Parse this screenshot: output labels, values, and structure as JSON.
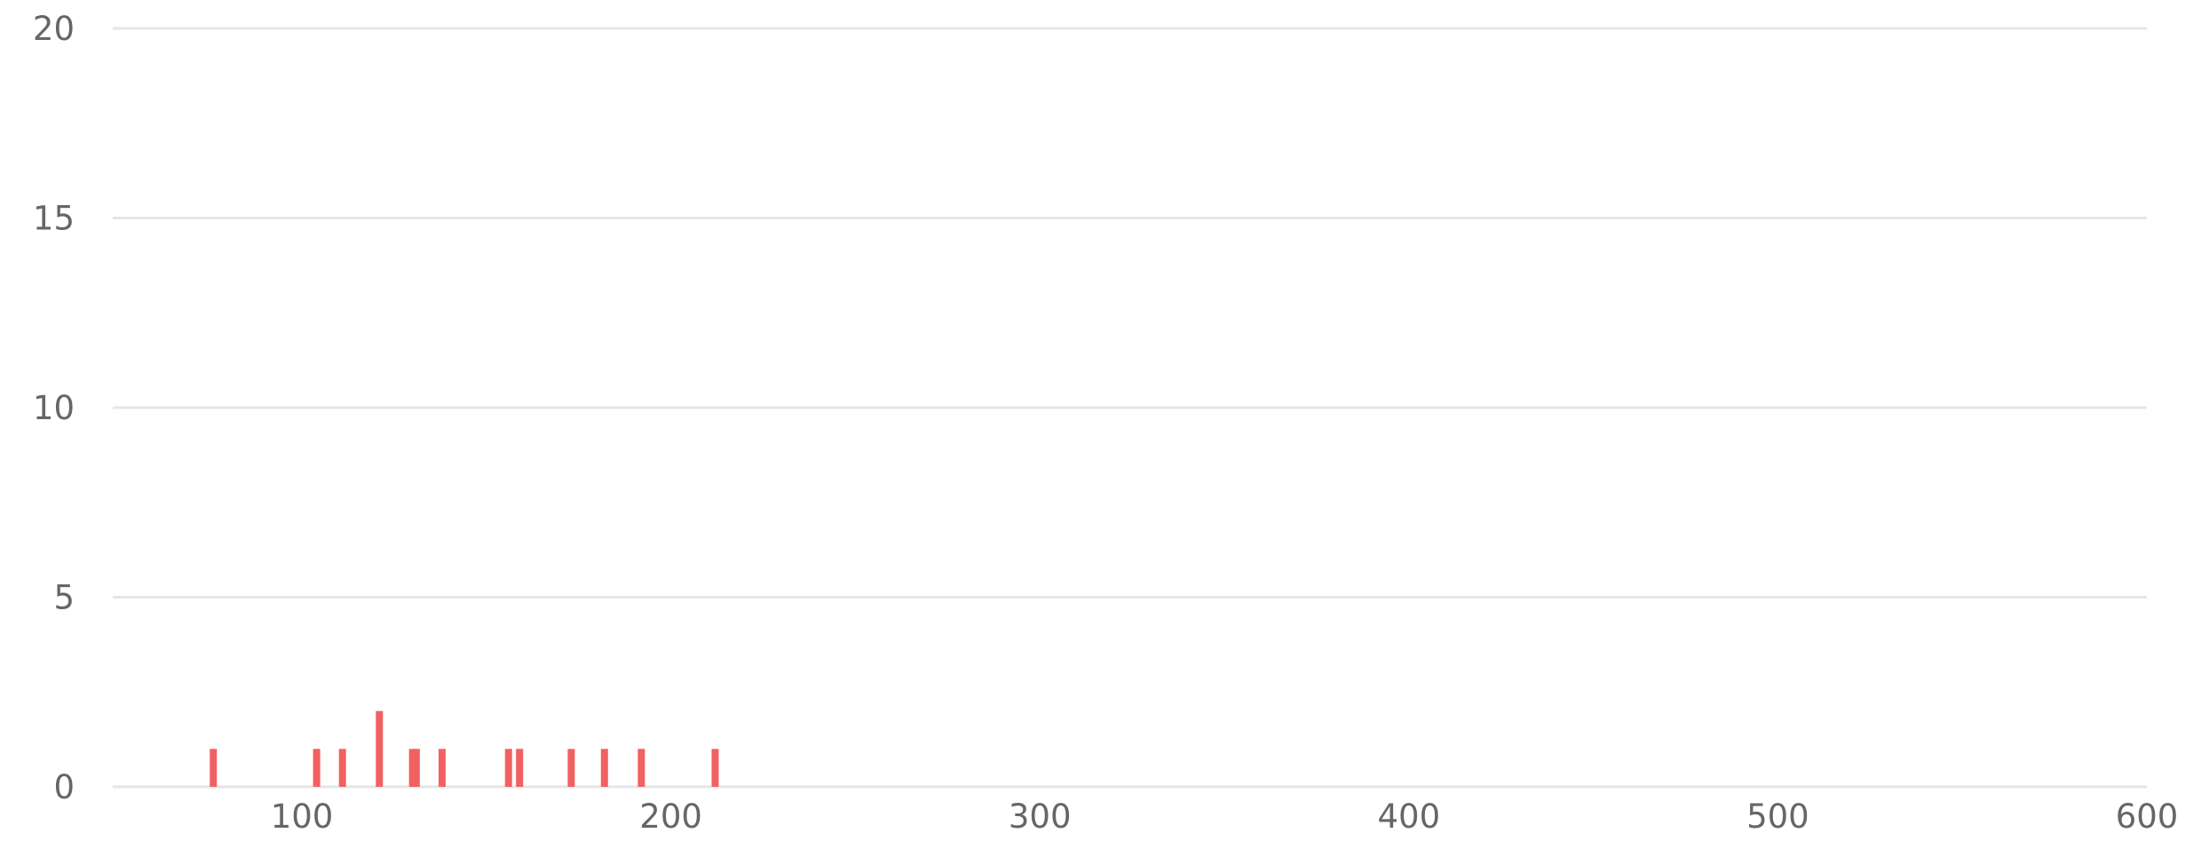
{
  "chart_data": {
    "type": "bar",
    "title": "",
    "xlabel": "",
    "ylabel": "",
    "xlim": [
      50,
      600
    ],
    "ylim": [
      0,
      20
    ],
    "x_ticks": [
      100,
      200,
      300,
      400,
      500,
      600
    ],
    "y_ticks": [
      0,
      5,
      10,
      15,
      20
    ],
    "grid": true,
    "legend": "none",
    "bar_color": "#f26161",
    "series": [
      {
        "x": [
          76,
          104,
          111,
          121,
          130,
          131,
          138,
          156,
          159,
          173,
          182,
          192,
          212
        ],
        "values": [
          1,
          1,
          1,
          2,
          1,
          1,
          1,
          1,
          1,
          1,
          1,
          1,
          1
        ]
      }
    ]
  }
}
